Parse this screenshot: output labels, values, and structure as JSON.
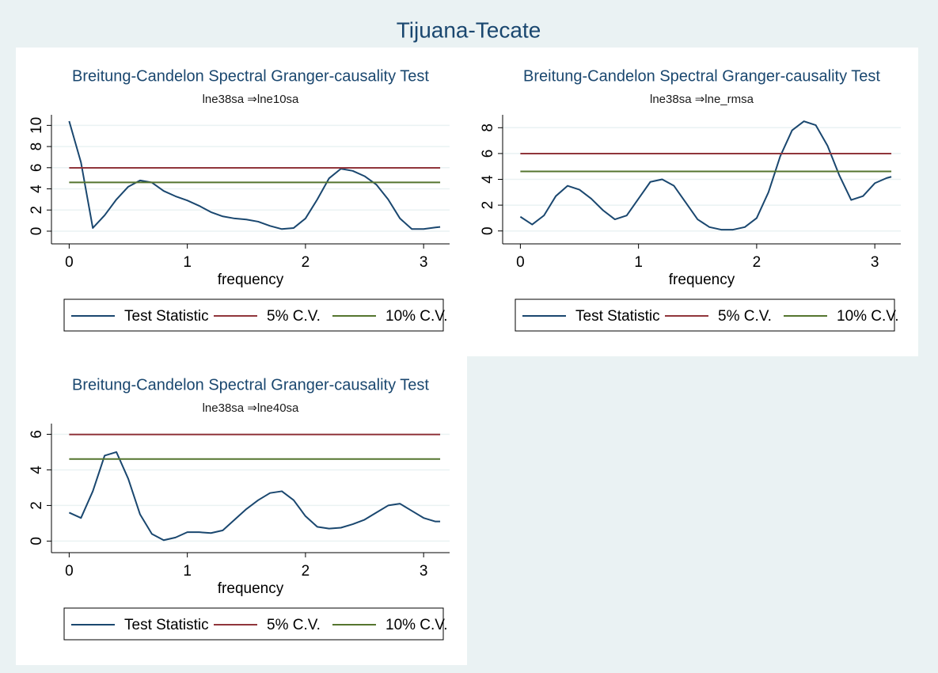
{
  "title": "Tijuana-Tecate",
  "chart_data": [
    {
      "type": "line",
      "title": "Breitung-Candelon Spectral Granger-causality Test",
      "subtitle": "lne38sa ⇒lne10sa",
      "x_label": "frequency",
      "x": [
        0,
        0.1,
        0.2,
        0.3,
        0.4,
        0.5,
        0.6,
        0.7,
        0.8,
        0.9,
        1.0,
        1.1,
        1.2,
        1.3,
        1.4,
        1.5,
        1.6,
        1.7,
        1.8,
        1.9,
        2.0,
        2.1,
        2.2,
        2.3,
        2.4,
        2.5,
        2.6,
        2.7,
        2.8,
        2.9,
        3.0,
        3.1,
        3.14
      ],
      "series": [
        {
          "name": "Test Statistic",
          "color": "#1a476f",
          "values": [
            10.4,
            6.5,
            0.3,
            1.5,
            3.0,
            4.2,
            4.8,
            4.6,
            3.8,
            3.3,
            2.9,
            2.4,
            1.8,
            1.4,
            1.2,
            1.1,
            0.9,
            0.5,
            0.2,
            0.3,
            1.2,
            3.0,
            5.0,
            5.9,
            5.7,
            5.2,
            4.4,
            3.0,
            1.2,
            0.2,
            0.2,
            0.35,
            0.4
          ]
        },
        {
          "name": "5% C.V.",
          "color": "#90353b",
          "values": [
            5.99,
            5.99,
            5.99,
            5.99,
            5.99,
            5.99,
            5.99,
            5.99,
            5.99,
            5.99,
            5.99,
            5.99,
            5.99,
            5.99,
            5.99,
            5.99,
            5.99,
            5.99,
            5.99,
            5.99,
            5.99,
            5.99,
            5.99,
            5.99,
            5.99,
            5.99,
            5.99,
            5.99,
            5.99,
            5.99,
            5.99,
            5.99,
            5.99
          ]
        },
        {
          "name": "10% C.V.",
          "color": "#55752f",
          "values": [
            4.61,
            4.61,
            4.61,
            4.61,
            4.61,
            4.61,
            4.61,
            4.61,
            4.61,
            4.61,
            4.61,
            4.61,
            4.61,
            4.61,
            4.61,
            4.61,
            4.61,
            4.61,
            4.61,
            4.61,
            4.61,
            4.61,
            4.61,
            4.61,
            4.61,
            4.61,
            4.61,
            4.61,
            4.61,
            4.61,
            4.61,
            4.61,
            4.61
          ]
        }
      ],
      "xlim": [
        -0.15,
        3.22
      ],
      "xticks": [
        0,
        1,
        2,
        3
      ],
      "ylim": [
        -1.2,
        11
      ],
      "yticks": [
        0,
        2,
        4,
        6,
        8,
        10
      ],
      "grid": true,
      "legend": "bottom"
    },
    {
      "type": "line",
      "title": "Breitung-Candelon Spectral Granger-causality Test",
      "subtitle": "lne38sa ⇒lne_rmsa",
      "x_label": "frequency",
      "x": [
        0,
        0.1,
        0.2,
        0.3,
        0.4,
        0.5,
        0.6,
        0.7,
        0.8,
        0.9,
        1.0,
        1.1,
        1.2,
        1.3,
        1.4,
        1.5,
        1.6,
        1.7,
        1.8,
        1.9,
        2.0,
        2.1,
        2.2,
        2.3,
        2.4,
        2.5,
        2.6,
        2.7,
        2.8,
        2.9,
        3.0,
        3.1,
        3.14
      ],
      "series": [
        {
          "name": "Test Statistic",
          "color": "#1a476f",
          "values": [
            1.1,
            0.5,
            1.2,
            2.7,
            3.5,
            3.2,
            2.5,
            1.6,
            0.9,
            1.2,
            2.5,
            3.8,
            4.0,
            3.5,
            2.2,
            0.9,
            0.3,
            0.1,
            0.1,
            0.3,
            1.0,
            3.0,
            5.8,
            7.8,
            8.5,
            8.2,
            6.6,
            4.3,
            2.4,
            2.7,
            3.7,
            4.1,
            4.2
          ]
        },
        {
          "name": "5% C.V.",
          "color": "#90353b",
          "values": [
            5.99,
            5.99,
            5.99,
            5.99,
            5.99,
            5.99,
            5.99,
            5.99,
            5.99,
            5.99,
            5.99,
            5.99,
            5.99,
            5.99,
            5.99,
            5.99,
            5.99,
            5.99,
            5.99,
            5.99,
            5.99,
            5.99,
            5.99,
            5.99,
            5.99,
            5.99,
            5.99,
            5.99,
            5.99,
            5.99,
            5.99,
            5.99,
            5.99
          ]
        },
        {
          "name": "10% C.V.",
          "color": "#55752f",
          "values": [
            4.61,
            4.61,
            4.61,
            4.61,
            4.61,
            4.61,
            4.61,
            4.61,
            4.61,
            4.61,
            4.61,
            4.61,
            4.61,
            4.61,
            4.61,
            4.61,
            4.61,
            4.61,
            4.61,
            4.61,
            4.61,
            4.61,
            4.61,
            4.61,
            4.61,
            4.61,
            4.61,
            4.61,
            4.61,
            4.61,
            4.61,
            4.61,
            4.61
          ]
        }
      ],
      "xlim": [
        -0.15,
        3.22
      ],
      "xticks": [
        0,
        1,
        2,
        3
      ],
      "ylim": [
        -1,
        9
      ],
      "yticks": [
        0,
        2,
        4,
        6,
        8
      ],
      "grid": true,
      "legend": "bottom"
    },
    {
      "type": "line",
      "title": "Breitung-Candelon Spectral Granger-causality Test",
      "subtitle": "lne38sa ⇒lne40sa",
      "x_label": "frequency",
      "x": [
        0,
        0.1,
        0.2,
        0.3,
        0.4,
        0.5,
        0.6,
        0.7,
        0.8,
        0.9,
        1.0,
        1.1,
        1.2,
        1.3,
        1.4,
        1.5,
        1.6,
        1.7,
        1.8,
        1.9,
        2.0,
        2.1,
        2.2,
        2.3,
        2.4,
        2.5,
        2.6,
        2.7,
        2.8,
        2.9,
        3.0,
        3.1,
        3.14
      ],
      "series": [
        {
          "name": "Test Statistic",
          "color": "#1a476f",
          "values": [
            1.6,
            1.3,
            2.8,
            4.8,
            5.0,
            3.5,
            1.5,
            0.4,
            0.05,
            0.2,
            0.5,
            0.5,
            0.45,
            0.6,
            1.2,
            1.8,
            2.3,
            2.7,
            2.8,
            2.3,
            1.4,
            0.8,
            0.7,
            0.75,
            0.95,
            1.2,
            1.6,
            2.0,
            2.1,
            1.7,
            1.3,
            1.1,
            1.1
          ]
        },
        {
          "name": "5% C.V.",
          "color": "#90353b",
          "values": [
            5.99,
            5.99,
            5.99,
            5.99,
            5.99,
            5.99,
            5.99,
            5.99,
            5.99,
            5.99,
            5.99,
            5.99,
            5.99,
            5.99,
            5.99,
            5.99,
            5.99,
            5.99,
            5.99,
            5.99,
            5.99,
            5.99,
            5.99,
            5.99,
            5.99,
            5.99,
            5.99,
            5.99,
            5.99,
            5.99,
            5.99,
            5.99,
            5.99
          ]
        },
        {
          "name": "10% C.V.",
          "color": "#55752f",
          "values": [
            4.61,
            4.61,
            4.61,
            4.61,
            4.61,
            4.61,
            4.61,
            4.61,
            4.61,
            4.61,
            4.61,
            4.61,
            4.61,
            4.61,
            4.61,
            4.61,
            4.61,
            4.61,
            4.61,
            4.61,
            4.61,
            4.61,
            4.61,
            4.61,
            4.61,
            4.61,
            4.61,
            4.61,
            4.61,
            4.61,
            4.61,
            4.61,
            4.61
          ]
        }
      ],
      "xlim": [
        -0.15,
        3.22
      ],
      "xticks": [
        0,
        1,
        2,
        3
      ],
      "ylim": [
        -0.65,
        6.6
      ],
      "yticks": [
        0,
        2,
        4,
        6
      ],
      "grid": true,
      "legend": "bottom"
    }
  ]
}
